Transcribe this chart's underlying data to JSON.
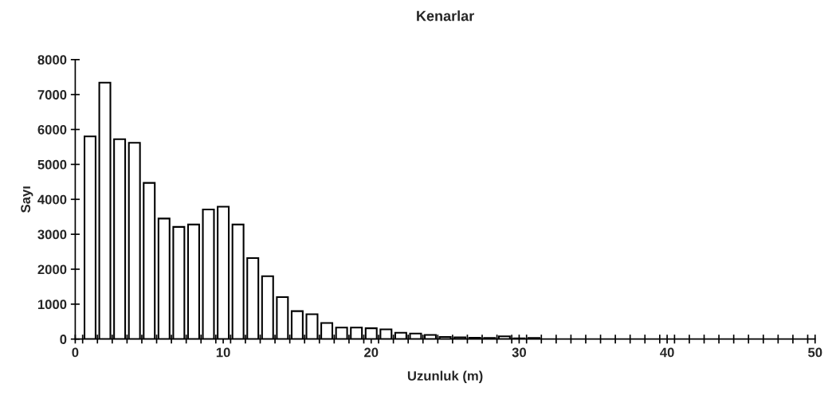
{
  "chart_data": {
    "type": "bar",
    "title": "Kenarlar",
    "xlabel": "Uzunluk (m)",
    "ylabel": "Sayı",
    "x": [
      1,
      2,
      3,
      4,
      5,
      6,
      7,
      8,
      9,
      10,
      11,
      12,
      13,
      14,
      15,
      16,
      17,
      18,
      19,
      20,
      21,
      22,
      23,
      24,
      25,
      26,
      27,
      28,
      29,
      30,
      31
    ],
    "series": [
      {
        "color": "#ffffff",
        "values": [
          5800,
          7340,
          5720,
          5620,
          4470,
          3450,
          3210,
          3280,
          3710,
          3790,
          3280,
          2320,
          1800,
          1200,
          800,
          710,
          460,
          330,
          330,
          310,
          280,
          180,
          160,
          120,
          60,
          50,
          40,
          30,
          80,
          20,
          30
        ]
      }
    ],
    "xlim": [
      0,
      50
    ],
    "ylim": [
      0,
      8000
    ],
    "xticks": [
      0,
      {
        "value": 0.5,
        "label": null
      },
      {
        "value": 1.5,
        "label": null
      },
      {
        "value": 2.5,
        "label": null
      },
      {
        "value": 3.5,
        "label": null
      },
      {
        "value": 4.5,
        "label": null
      },
      {
        "value": 5.5,
        "label": null
      },
      {
        "value": 6.5,
        "label": null
      },
      {
        "value": 7.5,
        "label": null
      },
      {
        "value": 8.5,
        "label": null
      },
      {
        "value": 9.5,
        "label": null
      },
      10,
      {
        "value": 10.5,
        "label": null
      },
      {
        "value": 11.5,
        "label": null
      },
      {
        "value": 12.5,
        "label": null
      },
      {
        "value": 13.5,
        "label": null
      },
      {
        "value": 14.5,
        "label": null
      },
      {
        "value": 15.5,
        "label": null
      },
      {
        "value": 16.5,
        "label": null
      },
      {
        "value": 17.5,
        "label": null
      },
      {
        "value": 18.5,
        "label": null
      },
      {
        "value": 19.5,
        "label": null
      },
      20,
      {
        "value": 20.5,
        "label": null
      },
      {
        "value": 21.5,
        "label": null
      },
      {
        "value": 22.5,
        "label": null
      },
      {
        "value": 23.5,
        "label": null
      },
      {
        "value": 24.5,
        "label": null
      },
      {
        "value": 25.5,
        "label": null
      },
      {
        "value": 26.5,
        "label": null
      },
      {
        "value": 27.5,
        "label": null
      },
      {
        "value": 28.5,
        "label": null
      },
      {
        "value": 29.5,
        "label": null
      },
      30,
      {
        "value": 30.5,
        "label": null
      },
      {
        "value": 31.5,
        "label": null
      },
      {
        "value": 32.5,
        "label": null
      },
      {
        "value": 33.5,
        "label": null
      },
      {
        "value": 34.5,
        "label": null
      },
      {
        "value": 35.5,
        "label": null
      },
      {
        "value": 36.5,
        "label": null
      },
      {
        "value": 37.5,
        "label": null
      },
      {
        "value": 38.5,
        "label": null
      },
      {
        "value": 39.5,
        "label": null
      },
      40,
      {
        "value": 40.5,
        "label": null
      },
      {
        "value": 41.5,
        "label": null
      },
      {
        "value": 42.5,
        "label": null
      },
      {
        "value": 43.5,
        "label": null
      },
      {
        "value": 44.5,
        "label": null
      },
      {
        "value": 45.5,
        "label": null
      },
      {
        "value": 46.5,
        "label": null
      },
      {
        "value": 47.5,
        "label": null
      },
      {
        "value": 48.5,
        "label": null
      },
      {
        "value": 49.5,
        "label": null
      },
      50
    ],
    "yticks": [
      0,
      1000,
      2000,
      3000,
      4000,
      5000,
      6000,
      7000,
      8000
    ],
    "grid": false,
    "legend": false
  }
}
